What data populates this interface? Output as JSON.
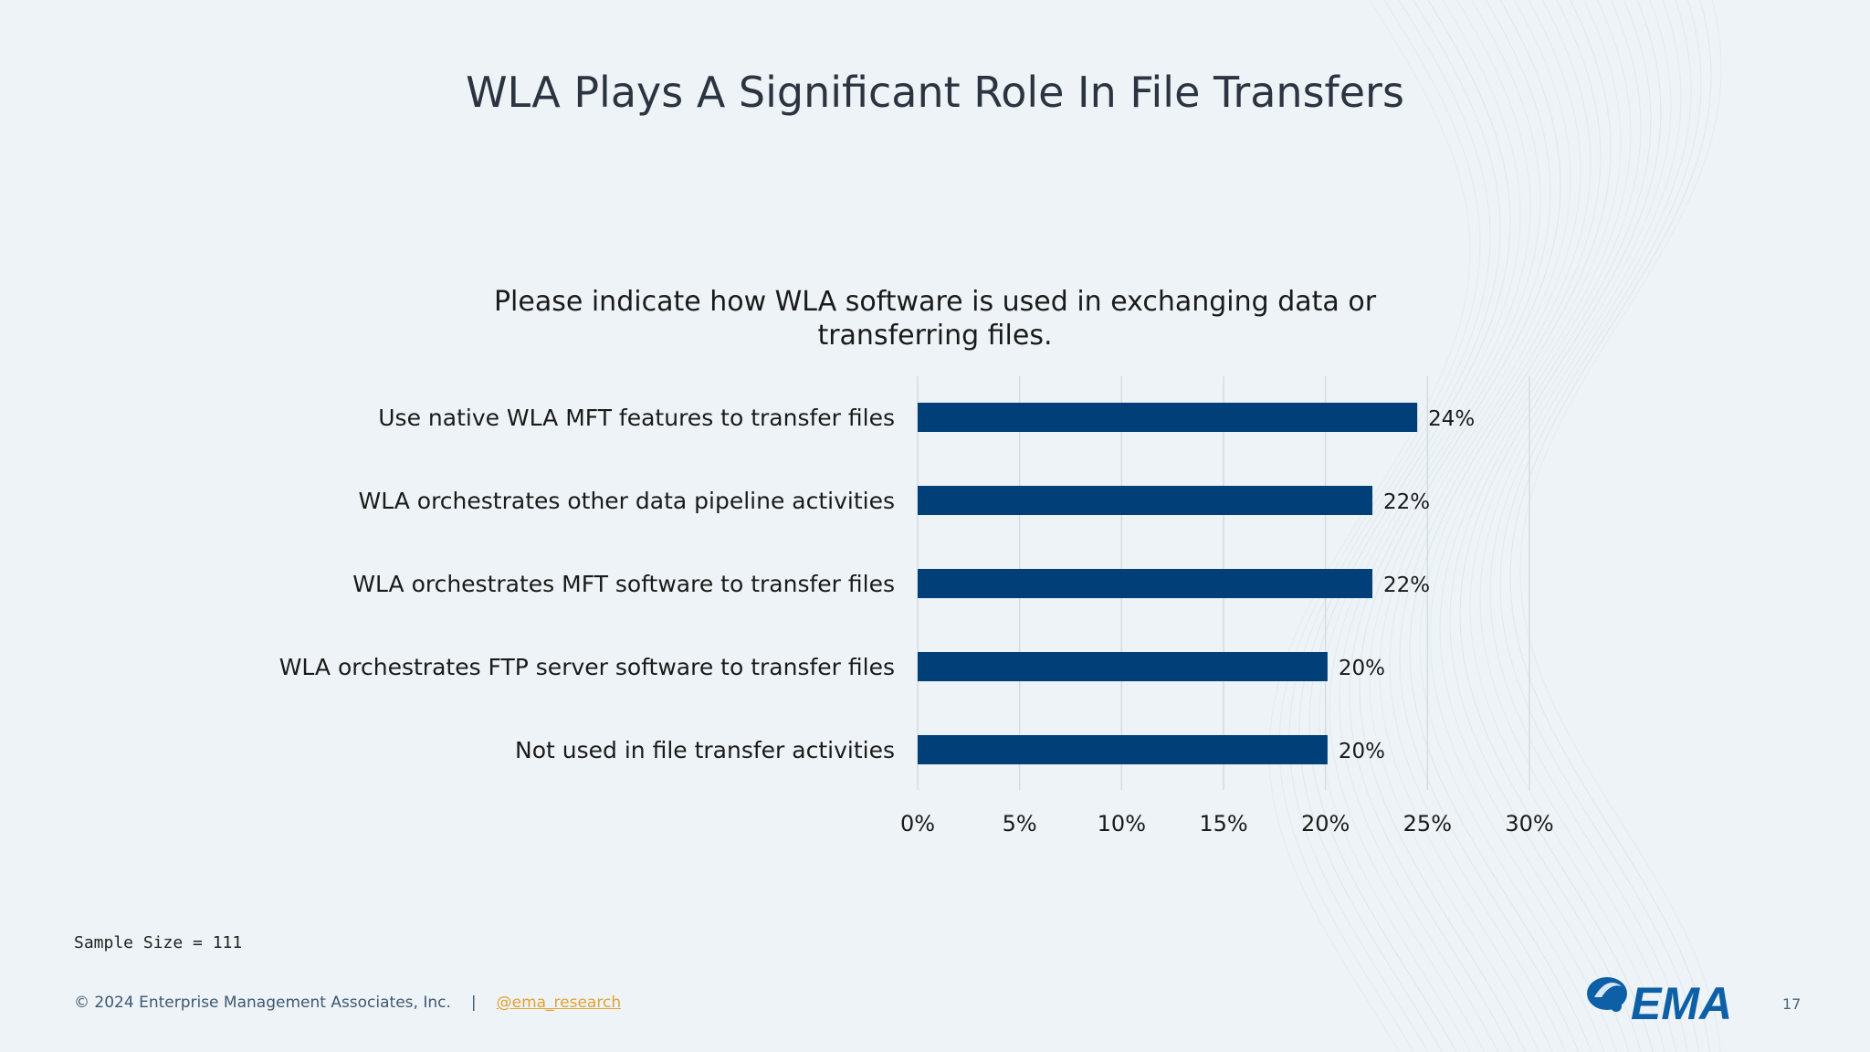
{
  "slide": {
    "title": "WLA Plays A Significant Role In File Transfers",
    "sample_size": "Sample Size = 111",
    "footer_copyright": "© 2024 Enterprise Management Associates, Inc.",
    "footer_separator": "|",
    "footer_handle": "@ema_research",
    "logo_text": "EMA",
    "page_number": "17"
  },
  "colors": {
    "bar": "#003f78",
    "grid": "#d6dde2",
    "text": "#1a1a1a",
    "title": "#2b3440",
    "handle": "#e2a233",
    "logo": "#0d5fa6"
  },
  "chart_data": {
    "type": "bar",
    "orientation": "horizontal",
    "title_lines": [
      "Please indicate how WLA software is used in exchanging data or",
      "transferring files."
    ],
    "categories": [
      "Use native WLA MFT features to transfer files",
      "WLA orchestrates other data pipeline activities",
      "WLA orchestrates MFT software to transfer files",
      "WLA orchestrates FTP server software to transfer files",
      "Not used in file transfer activities"
    ],
    "values": [
      24.5,
      22.3,
      22.3,
      20.1,
      20.1
    ],
    "value_labels": [
      "24%",
      "22%",
      "22%",
      "20%",
      "20%"
    ],
    "xlim": [
      0,
      30
    ],
    "x_ticks": [
      0,
      5,
      10,
      15,
      20,
      25,
      30
    ],
    "x_tick_labels": [
      "0%",
      "5%",
      "10%",
      "15%",
      "20%",
      "25%",
      "30%"
    ],
    "grid": true,
    "legend": "none"
  }
}
